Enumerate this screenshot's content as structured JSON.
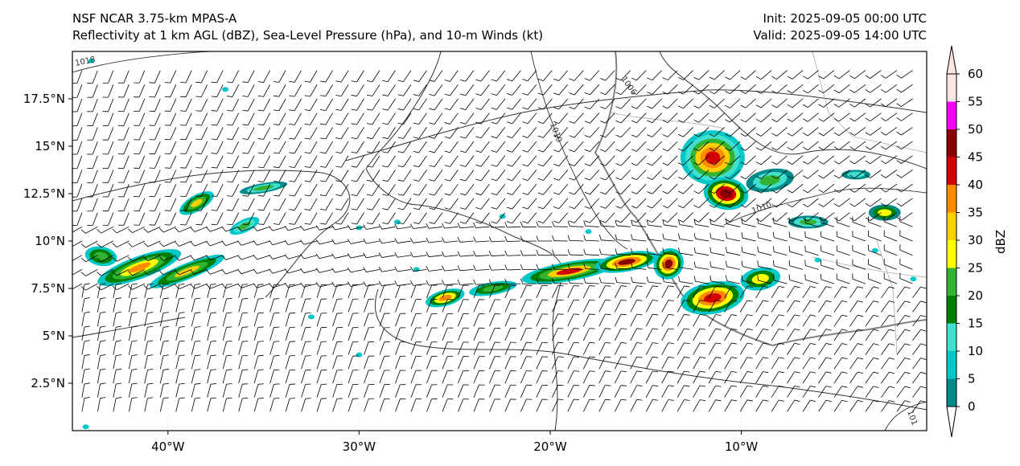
{
  "header": {
    "model": "NSF NCAR 3.75-km MPAS-A",
    "fields": "Reflectivity at 1 km AGL (dBZ), Sea-Level Pressure (hPa), and 10-m Winds (kt)",
    "init": "Init: 2025-09-05 00:00 UTC",
    "valid": "Valid: 2025-09-05 14:00 UTC"
  },
  "map": {
    "extent": {
      "lon_min": -45,
      "lon_max": -0.3,
      "lat_min": 0,
      "lat_max": 20
    },
    "lat_ticks": [
      {
        "value": 2.5,
        "label": "2.5°N"
      },
      {
        "value": 5,
        "label": "5°N"
      },
      {
        "value": 7.5,
        "label": "7.5°N"
      },
      {
        "value": 10,
        "label": "10°N"
      },
      {
        "value": 12.5,
        "label": "12.5°N"
      },
      {
        "value": 15,
        "label": "15°N"
      },
      {
        "value": 17.5,
        "label": "17.5°N"
      }
    ],
    "lon_ticks": [
      {
        "value": -40,
        "label": "40°W"
      },
      {
        "value": -30,
        "label": "30°W"
      },
      {
        "value": -20,
        "label": "20°W"
      },
      {
        "value": -10,
        "label": "10°W"
      }
    ],
    "isobar_labels": [
      "1018",
      "1006",
      "1010",
      "1010",
      "101"
    ]
  },
  "colorbar": {
    "label": "dBZ",
    "levels": [
      0,
      5,
      10,
      15,
      20,
      25,
      30,
      35,
      40,
      45,
      50,
      55,
      60
    ],
    "level_labels": [
      "0",
      "5",
      "10",
      "15",
      "20",
      "25",
      "30",
      "35",
      "40",
      "45",
      "50",
      "55",
      "60"
    ],
    "colors": [
      "#008a8a",
      "#00c8c8",
      "#40e0d0",
      "#008000",
      "#32b432",
      "#ffff00",
      "#ffd000",
      "#ff8c00",
      "#d20000",
      "#8b0000",
      "#ff00ff",
      "#ffe4e1"
    ]
  },
  "colors": {
    "coast": "#333333",
    "isobar": "#333333",
    "border": "#aaaaaa",
    "wind_barb": "#000000"
  }
}
